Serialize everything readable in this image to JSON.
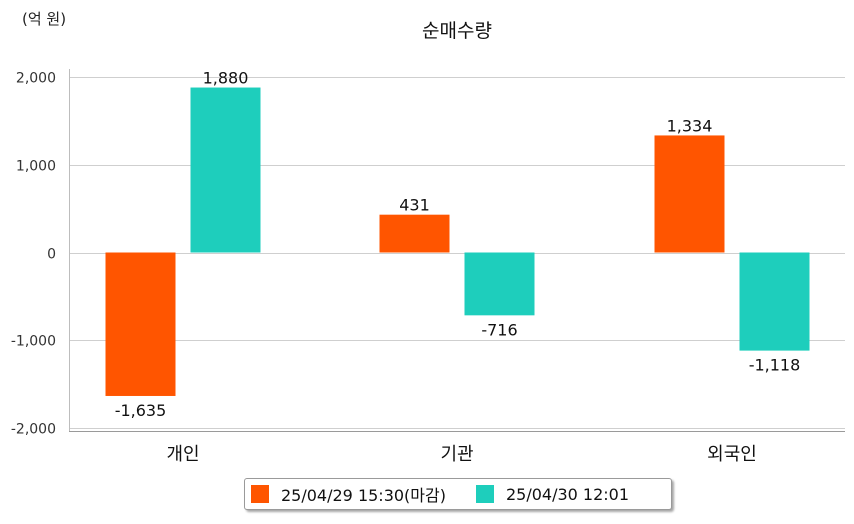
{
  "chart_data": {
    "type": "bar",
    "title": "순매수량",
    "unit_label": "(억 원)",
    "categories": [
      "개인",
      "기관",
      "외국인"
    ],
    "series": [
      {
        "name": "25/04/29 15:30(마감)",
        "color": "#ff5500",
        "values": [
          -1635,
          431,
          1334
        ]
      },
      {
        "name": "25/04/30 12:01",
        "color": "#1ecebc",
        "values": [
          1880,
          -716,
          -1118
        ]
      }
    ],
    "ylim": [
      -2000,
      2000
    ],
    "yticks": [
      2000,
      1000,
      0,
      -1000,
      -2000
    ],
    "ytick_labels": [
      "2,000",
      "1,000",
      "0",
      "-1,000",
      "-2,000"
    ],
    "data_labels": [
      [
        "-1,635",
        "431",
        "1,334"
      ],
      [
        "1,880",
        "-716",
        "-1,118"
      ]
    ],
    "grid": true,
    "legend_position": "bottom"
  }
}
